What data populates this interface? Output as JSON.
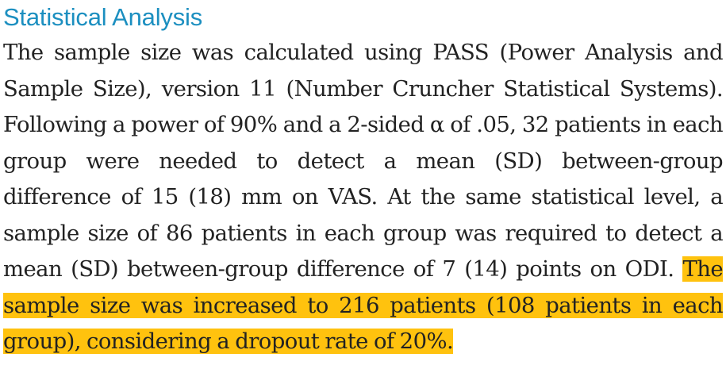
{
  "section": {
    "heading": "Statistical Analysis",
    "body_plain": "The sample size was calculated using PASS (Power Analysis and Sample Size), version 11 (Number Cruncher Statistical Systems). Following a power of 90% and a 2-sided α of .05, 32 patients in each group were needed to detect a mean (SD) between-group difference of 15 (18) mm on VAS. At the same statistical level, a sample size of 86 patients in each group was required to detect a mean (SD) between-group difference of 7 (14) points on ODI. ",
    "body_highlighted": "The sample size was increased to 216 patients (108 patients in each group), considering a dropout rate of 20%.",
    "highlight_color": "#ffc20e",
    "heading_color": "#1c8fc0"
  }
}
